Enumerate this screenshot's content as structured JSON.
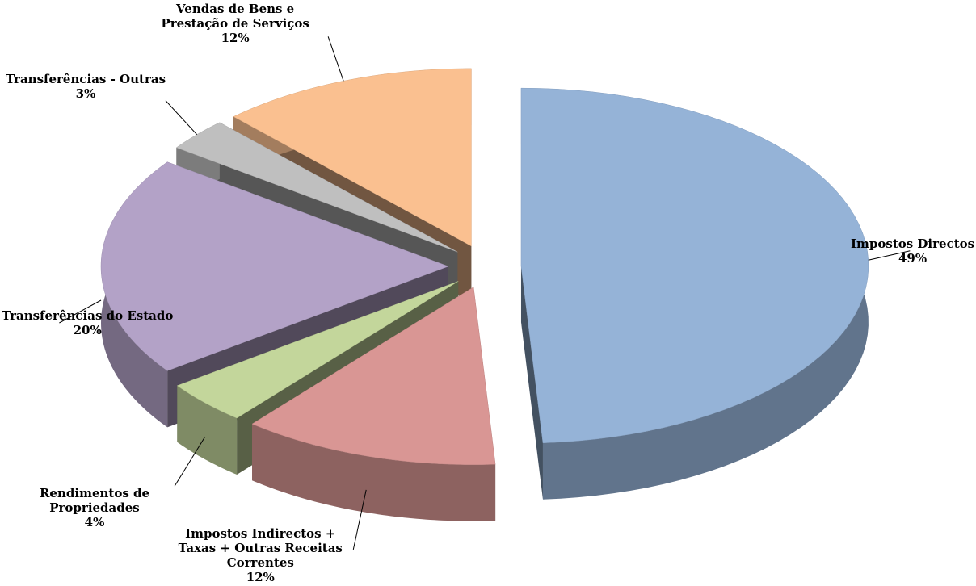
{
  "chart_data": {
    "type": "pie",
    "categories": [
      "Impostos Directos",
      "Impostos Indirectos + Taxas + Outras Receitas Correntes",
      "Rendimentos de Propriedades",
      "Transferências do Estado",
      "Transferências - Outras",
      "Vendas de Bens e Prestação de Serviços"
    ],
    "values": [
      49,
      12,
      4,
      20,
      3,
      12
    ],
    "value_labels": [
      "49%",
      "12%",
      "4%",
      "20%",
      "3%",
      "12%"
    ],
    "colors": [
      "#95b3d7",
      "#d99694",
      "#c3d69b",
      "#b3a2c7",
      "#bfbfbf",
      "#fac090"
    ]
  }
}
